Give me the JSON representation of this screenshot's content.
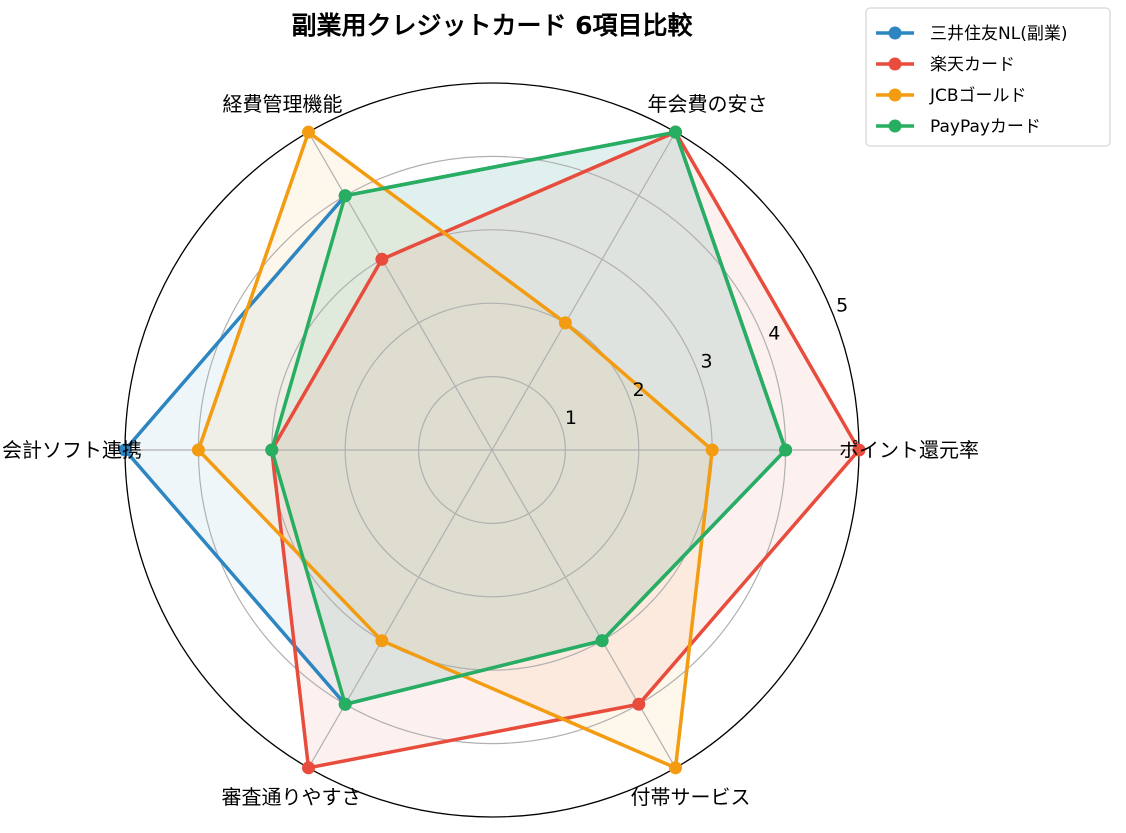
{
  "chart_data": {
    "type": "radar",
    "title": "副業用クレジットカード 6項目比較",
    "axes": [
      "ポイント還元率",
      "年会費の安さ",
      "経費管理機能",
      "会計ソフト連携",
      "審査通りやすさ",
      "付帯サービス"
    ],
    "rlim": [
      0,
      5
    ],
    "r_ticks": [
      1,
      2,
      3,
      4,
      5
    ],
    "grid": true,
    "legend_position": "top-right",
    "series": [
      {
        "name": "三井住友NL(副業)",
        "color": "#2e86c1",
        "values": [
          4,
          5,
          4,
          5,
          4,
          3
        ]
      },
      {
        "name": "楽天カード",
        "color": "#e74c3c",
        "values": [
          5,
          5,
          3,
          3,
          5,
          4
        ]
      },
      {
        "name": "JCBゴールド",
        "color": "#f39c12",
        "values": [
          3,
          2,
          5,
          4,
          3,
          5
        ]
      },
      {
        "name": "PayPayカード",
        "color": "#27ae60",
        "values": [
          4,
          5,
          4,
          3,
          4,
          3
        ]
      }
    ]
  }
}
